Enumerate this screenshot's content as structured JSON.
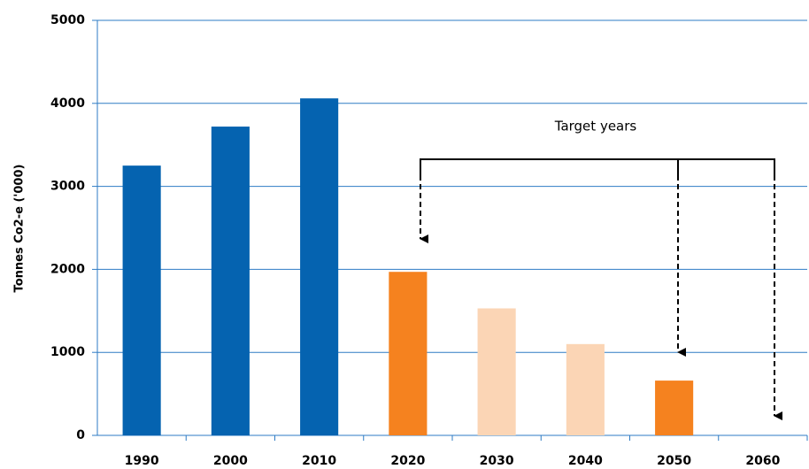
{
  "chart_data": {
    "type": "bar",
    "y_label": "Tonnes Co2-e ('000)",
    "annotation": "Target years",
    "categories": [
      "1990",
      "2000",
      "2010",
      "2020",
      "2030",
      "2040",
      "2050",
      "2060"
    ],
    "values": [
      3250,
      3720,
      4060,
      1970,
      1530,
      1100,
      660,
      0
    ],
    "colors": [
      "#0563b0",
      "#0563b0",
      "#0563b0",
      "#f5821f",
      "#fbd5b5",
      "#fbd5b5",
      "#f5821f",
      "#f5821f"
    ],
    "ylim": [
      0,
      5000
    ],
    "yticks": [
      0,
      1000,
      2000,
      3000,
      4000,
      5000
    ],
    "grid": true
  }
}
